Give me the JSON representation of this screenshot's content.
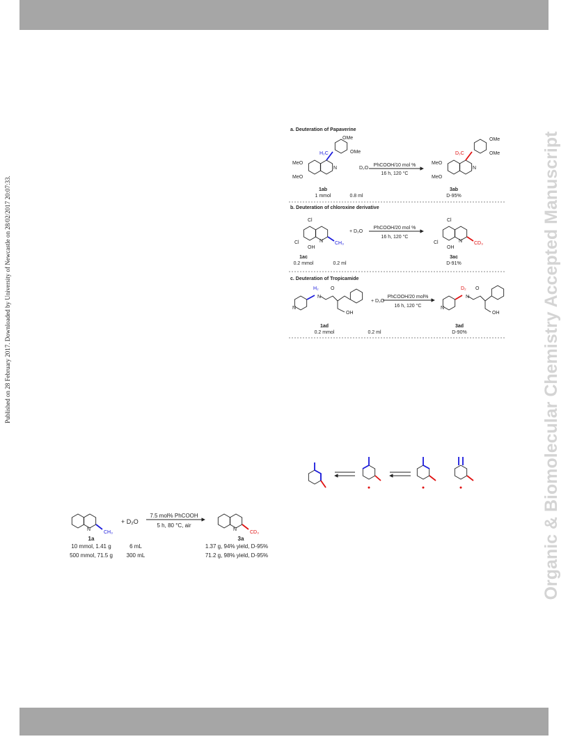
{
  "sidebar": {
    "left": "Published on 28 February 2017. Downloaded by University of Newcastle on 28/02/2017 20:07:33.",
    "right": "Organic & Biomolecular Chemistry Accepted Manuscript"
  },
  "scheme_deuteration": {
    "panels": [
      {
        "title": "a. Deuteration of Papaverine",
        "reagent": "PhCOOH/10 mol %",
        "conditions": "16 h, 120 °C",
        "d2o": "D₂O",
        "substrate": "1ab",
        "substrate_amount": "1 mmol",
        "d2o_amount": "0.8 ml",
        "product": "3ab",
        "result": "D-95%",
        "atoms": [
          "H₂C",
          "D₂C",
          "OMe",
          "OMe",
          "MeO",
          "MeO",
          "N"
        ]
      },
      {
        "title": "b. Deuteration of chloroxine derivative",
        "reagent": "PhCOOH/20 mol %",
        "conditions": "16 h, 120 °C",
        "d2o": "+ D₂O",
        "substrate": "1ac",
        "substrate_amount": "0.2 mmol",
        "d2o_amount": "0.2 ml",
        "product": "3ac",
        "result": "D-91%",
        "atoms": [
          "CH₃",
          "CD₃",
          "Cl",
          "Cl",
          "OH",
          "N"
        ]
      },
      {
        "title": "c. Deuteration of Tropicamide",
        "reagent": "PhCOOH/20 mol%",
        "conditions": "16 h, 120 °C",
        "d2o": "+ D₂O",
        "substrate": "1ad",
        "substrate_amount": "0.2 mmol",
        "d2o_amount": "0.2 ml",
        "product": "3ad",
        "result": "D-90%",
        "atoms": [
          "H₂",
          "D₂",
          "O",
          "N",
          "OH",
          "N"
        ]
      }
    ]
  },
  "scheme_scaleup": {
    "substrate": "1a",
    "plus_d2o": "+ D₂O",
    "reagent": "7.5 mol% PhCOOH",
    "conditions": "5 h, 80 °C, air",
    "product": "3a",
    "substrate_methyl": "CH₃",
    "product_methyl": "CD₃",
    "n": "N",
    "rows": [
      [
        "10 mmol, 1.41 g",
        "6 mL",
        "1.37 g, 94% yield, D-95%"
      ],
      [
        "500 mmol, 71.5 g",
        "300 mL",
        "71.2 g, 98% yield, D-95%"
      ]
    ]
  }
}
